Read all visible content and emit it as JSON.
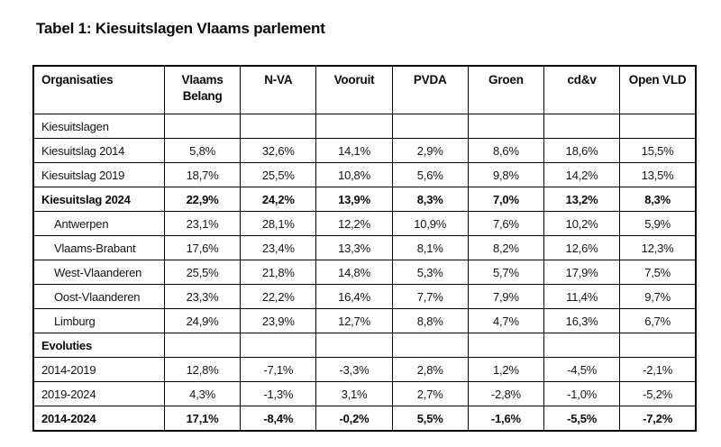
{
  "title": "Tabel 1: Kiesuitslagen Vlaams parlement",
  "colors": {
    "background": "#ffffff",
    "border": "#000000",
    "text": "#141414"
  },
  "table": {
    "columns": [
      "Organisaties",
      "Vlaams Belang",
      "N-VA",
      "Vooruit",
      "PVDA",
      "Groen",
      "cd&v",
      "Open VLD"
    ],
    "rows": [
      {
        "label": "Kiesuitslagen",
        "style": "section-plain",
        "indent": false,
        "values": [
          "",
          "",
          "",
          "",
          "",
          "",
          ""
        ]
      },
      {
        "label": "Kiesuitslag 2014",
        "style": "normal",
        "indent": false,
        "values": [
          "5,8%",
          "32,6%",
          "14,1%",
          "2,9%",
          "8,6%",
          "18,6%",
          "15,5%"
        ]
      },
      {
        "label": "Kiesuitslag 2019",
        "style": "normal",
        "indent": false,
        "values": [
          "18,7%",
          "25,5%",
          "10,8%",
          "5,6%",
          "9,8%",
          "14,2%",
          "13,5%"
        ]
      },
      {
        "label": "Kiesuitslag 2024",
        "style": "bold",
        "indent": false,
        "values": [
          "22,9%",
          "24,2%",
          "13,9%",
          "8,3%",
          "7,0%",
          "13,2%",
          "8,3%"
        ]
      },
      {
        "label": "Antwerpen",
        "style": "normal",
        "indent": true,
        "values": [
          "23,1%",
          "28,1%",
          "12,2%",
          "10,9%",
          "7,6%",
          "10,2%",
          "5,9%"
        ]
      },
      {
        "label": "Vlaams-Brabant",
        "style": "normal",
        "indent": true,
        "values": [
          "17,6%",
          "23,4%",
          "13,3%",
          "8,1%",
          "8,2%",
          "12,6%",
          "12,3%"
        ]
      },
      {
        "label": "West-Vlaanderen",
        "style": "normal",
        "indent": true,
        "values": [
          "25,5%",
          "21,8%",
          "14,8%",
          "5,3%",
          "5,7%",
          "17,9%",
          "7,5%"
        ]
      },
      {
        "label": "Oost-Vlaanderen",
        "style": "normal",
        "indent": true,
        "values": [
          "23,3%",
          "22,2%",
          "16,4%",
          "7,7%",
          "7,9%",
          "11,4%",
          "9,7%"
        ]
      },
      {
        "label": "Limburg",
        "style": "normal",
        "indent": true,
        "values": [
          "24,9%",
          "23,9%",
          "12,7%",
          "8,8%",
          "4,7%",
          "16,3%",
          "6,7%"
        ]
      },
      {
        "label": "Evoluties",
        "style": "section-bold",
        "indent": false,
        "values": [
          "",
          "",
          "",
          "",
          "",
          "",
          ""
        ]
      },
      {
        "label": "2014-2019",
        "style": "normal",
        "indent": false,
        "values": [
          "12,8%",
          "-7,1%",
          "-3,3%",
          "2,8%",
          "1,2%",
          "-4,5%",
          "-2,1%"
        ]
      },
      {
        "label": "2019-2024",
        "style": "normal",
        "indent": false,
        "values": [
          "4,3%",
          "-1,3%",
          "3,1%",
          "2,7%",
          "-2,8%",
          "-1,0%",
          "-5,2%"
        ]
      },
      {
        "label": "2014-2024",
        "style": "bold",
        "indent": false,
        "values": [
          "17,1%",
          "-8,4%",
          "-0,2%",
          "5,5%",
          "-1,6%",
          "-5,5%",
          "-7,2%"
        ]
      }
    ]
  }
}
